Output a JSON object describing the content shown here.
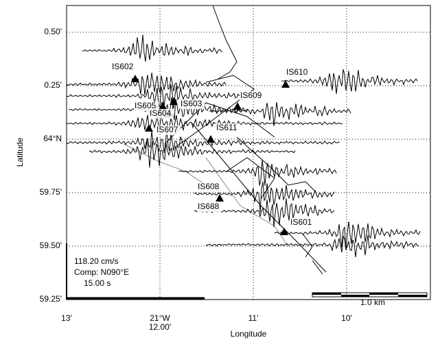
{
  "axes": {
    "y_label": "Latitude",
    "x_label": "Longitude",
    "y_ticks": [
      "0.50'",
      "0.25'",
      "64°N",
      "59.75'",
      "59.50'",
      "59.25'"
    ],
    "x_ticks": [
      "13'",
      "21°W",
      "11'",
      "10'"
    ],
    "x_subtick": "12.00'"
  },
  "stations": [
    "IS602",
    "IS610",
    "IS603",
    "IS605",
    "IS604",
    "IS609",
    "IS607",
    "IS611",
    "IS608",
    "IS688",
    "IS601"
  ],
  "legend": {
    "amplitude": "118.20 cm/s",
    "component": "Comp: N090°E",
    "duration": "15.00 s"
  },
  "scale_bar": "1.0 km"
}
